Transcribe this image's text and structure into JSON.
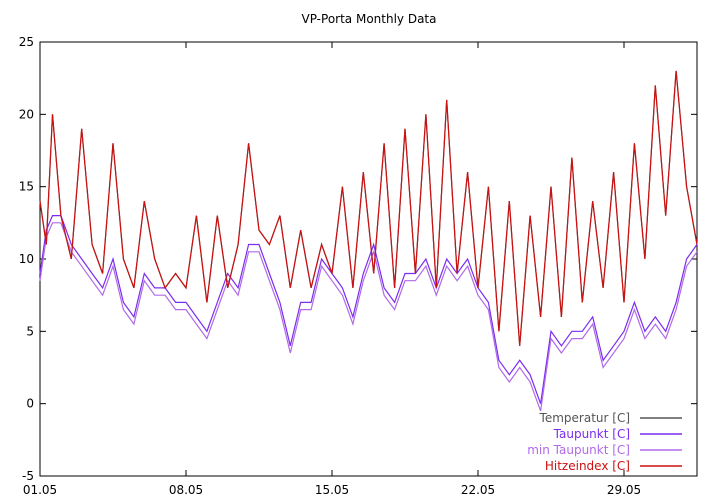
{
  "chart_data": {
    "type": "line",
    "title": "VP-Porta Monthly Data",
    "xlabel": "",
    "ylabel": "",
    "xlim": [
      0,
      31.5
    ],
    "ylim": [
      -5,
      25
    ],
    "yticks": [
      -5,
      0,
      5,
      10,
      15,
      20,
      25
    ],
    "xticks": [
      {
        "day": 0,
        "label": "01.05"
      },
      {
        "day": 7,
        "label": "08.05"
      },
      {
        "day": 14,
        "label": "15.05"
      },
      {
        "day": 21,
        "label": "22.05"
      },
      {
        "day": 28,
        "label": "29.05"
      }
    ],
    "legend_position": "bottom-right",
    "series": [
      {
        "name": "Temperatur [C]",
        "color": "#555555",
        "x": [
          0,
          0.3,
          0.6,
          1.0,
          1.5,
          2.0,
          2.5,
          3.0,
          3.5,
          4.0,
          4.5,
          5.0,
          5.5,
          6.0,
          6.5,
          7.0,
          7.5,
          8.0,
          8.5,
          9.0,
          9.5,
          10.0,
          10.5,
          11.0,
          11.5,
          12.0,
          12.5,
          13.0,
          13.5,
          14.0,
          14.5,
          15.0,
          15.5,
          16.0,
          16.5,
          17.0,
          17.5,
          18.0,
          18.5,
          19.0,
          19.5,
          20.0,
          20.5,
          21.0,
          21.5,
          22.0,
          22.5,
          23.0,
          23.5,
          24.0,
          24.5,
          25.0,
          25.5,
          26.0,
          26.5,
          27.0,
          27.5,
          28.0,
          28.5,
          29.0,
          29.5,
          30.0,
          30.5,
          31.0,
          31.5
        ],
        "values": [
          14,
          11,
          20,
          13,
          10,
          19,
          11,
          9,
          18,
          10,
          8,
          14,
          10,
          8,
          9,
          8,
          13,
          7,
          13,
          8,
          11,
          18,
          12,
          11,
          13,
          8,
          12,
          8,
          11,
          9,
          15,
          8,
          16,
          9,
          18,
          8,
          19,
          9,
          20,
          8,
          21,
          9,
          16,
          8,
          15,
          5,
          14,
          4,
          13,
          6,
          15,
          6,
          17,
          7,
          14,
          8,
          16,
          7,
          18,
          10,
          22,
          13,
          23,
          15,
          11
        ]
      },
      {
        "name": "Taupunkt [C]",
        "color": "#7b2cf0",
        "x": [
          0,
          0.3,
          0.6,
          1.0,
          1.5,
          2.0,
          2.5,
          3.0,
          3.5,
          4.0,
          4.5,
          5.0,
          5.5,
          6.0,
          6.5,
          7.0,
          7.5,
          8.0,
          8.5,
          9.0,
          9.5,
          10.0,
          10.5,
          11.0,
          11.5,
          12.0,
          12.5,
          13.0,
          13.5,
          14.0,
          14.5,
          15.0,
          15.5,
          16.0,
          16.5,
          17.0,
          17.5,
          18.0,
          18.5,
          19.0,
          19.5,
          20.0,
          20.5,
          21.0,
          21.5,
          22.0,
          22.5,
          23.0,
          23.5,
          24.0,
          24.5,
          25.0,
          25.5,
          26.0,
          26.5,
          27.0,
          27.5,
          28.0,
          28.5,
          29.0,
          29.5,
          30.0,
          30.5,
          31.0,
          31.5
        ],
        "values": [
          9,
          12,
          13,
          13,
          11,
          10,
          9,
          8,
          10,
          7,
          6,
          9,
          8,
          8,
          7,
          7,
          6,
          5,
          7,
          9,
          8,
          11,
          11,
          9,
          7,
          4,
          7,
          7,
          10,
          9,
          8,
          6,
          9,
          11,
          8,
          7,
          9,
          9,
          10,
          8,
          10,
          9,
          10,
          8,
          7,
          3,
          2,
          3,
          2,
          0,
          5,
          4,
          5,
          5,
          6,
          3,
          4,
          5,
          7,
          5,
          6,
          5,
          7,
          10,
          11
        ]
      },
      {
        "name": "min Taupunkt [C]",
        "color": "#b06ae8",
        "x": [
          0,
          0.3,
          0.6,
          1.0,
          1.5,
          2.0,
          2.5,
          3.0,
          3.5,
          4.0,
          4.5,
          5.0,
          5.5,
          6.0,
          6.5,
          7.0,
          7.5,
          8.0,
          8.5,
          9.0,
          9.5,
          10.0,
          10.5,
          11.0,
          11.5,
          12.0,
          12.5,
          13.0,
          13.5,
          14.0,
          14.5,
          15.0,
          15.5,
          16.0,
          16.5,
          17.0,
          17.5,
          18.0,
          18.5,
          19.0,
          19.5,
          20.0,
          20.5,
          21.0,
          21.5,
          22.0,
          22.5,
          23.0,
          23.5,
          24.0,
          24.5,
          25.0,
          25.5,
          26.0,
          26.5,
          27.0,
          27.5,
          28.0,
          28.5,
          29.0,
          29.5,
          30.0,
          30.5,
          31.0,
          31.5
        ],
        "values": [
          8.5,
          11.5,
          12.5,
          12.5,
          10.5,
          9.5,
          8.5,
          7.5,
          9.5,
          6.5,
          5.5,
          8.5,
          7.5,
          7.5,
          6.5,
          6.5,
          5.5,
          4.5,
          6.5,
          8.5,
          7.5,
          10.5,
          10.5,
          8.5,
          6.5,
          3.5,
          6.5,
          6.5,
          9.5,
          8.5,
          7.5,
          5.5,
          8.5,
          10.5,
          7.5,
          6.5,
          8.5,
          8.5,
          9.5,
          7.5,
          9.5,
          8.5,
          9.5,
          7.5,
          6.5,
          2.5,
          1.5,
          2.5,
          1.5,
          -0.5,
          4.5,
          3.5,
          4.5,
          4.5,
          5.5,
          2.5,
          3.5,
          4.5,
          6.5,
          4.5,
          5.5,
          4.5,
          6.5,
          9.5,
          10.5
        ]
      },
      {
        "name": "Hitzeindex [C]",
        "color": "#cc1111",
        "x": [
          0,
          0.3,
          0.6,
          1.0,
          1.5,
          2.0,
          2.5,
          3.0,
          3.5,
          4.0,
          4.5,
          5.0,
          5.5,
          6.0,
          6.5,
          7.0,
          7.5,
          8.0,
          8.5,
          9.0,
          9.5,
          10.0,
          10.5,
          11.0,
          11.5,
          12.0,
          12.5,
          13.0,
          13.5,
          14.0,
          14.5,
          15.0,
          15.5,
          16.0,
          16.5,
          17.0,
          17.5,
          18.0,
          18.5,
          19.0,
          19.5,
          20.0,
          20.5,
          21.0,
          21.5,
          22.0,
          22.5,
          23.0,
          23.5,
          24.0,
          24.5,
          25.0,
          25.5,
          26.0,
          26.5,
          27.0,
          27.5,
          28.0,
          28.5,
          29.0,
          29.5,
          30.0,
          30.5,
          31.0,
          31.5
        ],
        "values": [
          14,
          11,
          20,
          13,
          10,
          19,
          11,
          9,
          18,
          10,
          8,
          14,
          10,
          8,
          9,
          8,
          13,
          7,
          13,
          8,
          11,
          18,
          12,
          11,
          13,
          8,
          12,
          8,
          11,
          9,
          15,
          8,
          16,
          9,
          18,
          8,
          19,
          9,
          20,
          8,
          21,
          9,
          16,
          8,
          15,
          5,
          14,
          4,
          13,
          6,
          15,
          6,
          17,
          7,
          14,
          8,
          16,
          7,
          18,
          10,
          22,
          13,
          23,
          15,
          11
        ]
      }
    ]
  }
}
